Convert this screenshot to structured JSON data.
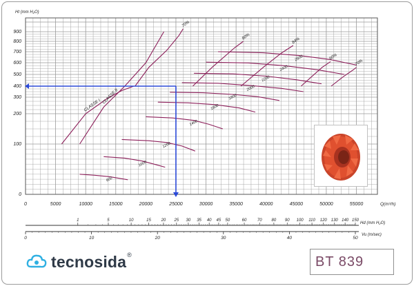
{
  "chart_data": {
    "type": "line",
    "ylabel": "Ht (mm H₂O)",
    "xlabel": "Q(m³/h)",
    "x_ticks": [
      0,
      5000,
      10000,
      15000,
      20000,
      25000,
      30000,
      35000,
      40000,
      45000,
      50000,
      55000
    ],
    "x_tick_labels": [
      "0",
      "5000",
      "10000",
      "15000",
      "20000",
      "25000",
      "30000",
      "35000",
      "40000",
      "45000",
      "50000",
      "55000"
    ],
    "xlim": [
      0,
      58500
    ],
    "y_ticks": [
      100,
      200,
      300,
      400,
      500,
      600,
      700,
      800,
      900
    ],
    "y_tick_labels": [
      "100",
      "200",
      "300",
      "400",
      "500",
      "600",
      "700",
      "800",
      "900"
    ],
    "y_zero_label": "0",
    "efficiency_lines": [
      {
        "label": "70%",
        "points": [
          [
            18200,
            400
          ],
          [
            20500,
            560
          ],
          [
            23500,
            715
          ],
          [
            25500,
            860
          ],
          [
            26200,
            930
          ]
        ]
      },
      {
        "label": "80%",
        "points": [
          [
            27800,
            400
          ],
          [
            31000,
            560
          ],
          [
            34800,
            740
          ],
          [
            36200,
            800
          ]
        ]
      },
      {
        "label": "84%",
        "points": [
          [
            35800,
            400
          ],
          [
            39500,
            560
          ],
          [
            42600,
            690
          ],
          [
            44500,
            760
          ]
        ]
      },
      {
        "label": "80%",
        "points": [
          [
            45800,
            400
          ],
          [
            48200,
            510
          ],
          [
            49300,
            560
          ],
          [
            50700,
            610
          ]
        ]
      },
      {
        "label": "70%",
        "points": [
          [
            50800,
            400
          ],
          [
            52800,
            480
          ],
          [
            54500,
            540
          ],
          [
            55000,
            560
          ]
        ]
      }
    ],
    "speed_curves": [
      {
        "label": "600",
        "points": [
          [
            9000,
            40
          ],
          [
            11500,
            38
          ],
          [
            14000,
            35
          ],
          [
            16500,
            30
          ],
          [
            17000,
            29
          ]
        ]
      },
      {
        "label": "1000",
        "points": [
          [
            13000,
            75
          ],
          [
            16500,
            72
          ],
          [
            19500,
            66
          ],
          [
            22000,
            58
          ],
          [
            23200,
            54
          ]
        ]
      },
      {
        "label": "1200",
        "points": [
          [
            16000,
            115
          ],
          [
            20500,
            111
          ],
          [
            23500,
            105
          ],
          [
            26000,
            96
          ],
          [
            28200,
            86
          ]
        ]
      },
      {
        "label": "1400",
        "points": [
          [
            20000,
            190
          ],
          [
            24500,
            186
          ],
          [
            28000,
            178
          ],
          [
            30500,
            165
          ],
          [
            32800,
            150
          ]
        ]
      },
      {
        "label": "1600",
        "points": [
          [
            22000,
            270
          ],
          [
            27000,
            266
          ],
          [
            31500,
            255
          ],
          [
            35500,
            235
          ],
          [
            38200,
            210
          ]
        ]
      },
      {
        "label": "1800",
        "points": [
          [
            24000,
            345
          ],
          [
            29500,
            340
          ],
          [
            34500,
            325
          ],
          [
            38500,
            305
          ],
          [
            42200,
            280
          ]
        ]
      },
      {
        "label": "2000",
        "points": [
          [
            26000,
            430
          ],
          [
            32000,
            425
          ],
          [
            37500,
            405
          ],
          [
            42500,
            380
          ],
          [
            46200,
            350
          ]
        ]
      },
      {
        "label": "2200",
        "points": [
          [
            28000,
            510
          ],
          [
            34500,
            505
          ],
          [
            40000,
            485
          ],
          [
            45000,
            455
          ],
          [
            49200,
            420
          ]
        ]
      },
      {
        "label": "2400",
        "points": [
          [
            30000,
            605
          ],
          [
            37000,
            598
          ],
          [
            43000,
            575
          ],
          [
            48500,
            540
          ],
          [
            53000,
            500
          ]
        ]
      },
      {
        "label": "2600",
        "points": [
          [
            32000,
            700
          ],
          [
            39500,
            690
          ],
          [
            45500,
            665
          ],
          [
            50500,
            630
          ],
          [
            55000,
            580
          ]
        ]
      }
    ],
    "class_lines": [
      {
        "label": "CLASSE I",
        "points": [
          [
            6000,
            100
          ],
          [
            10000,
            200
          ],
          [
            13500,
            290
          ],
          [
            16000,
            360
          ],
          [
            18000,
            400
          ]
        ]
      },
      {
        "label": "CLASSE II",
        "points": [
          [
            9000,
            100
          ],
          [
            13000,
            240
          ],
          [
            16500,
            400
          ],
          [
            20000,
            600
          ],
          [
            23000,
            900
          ]
        ]
      }
    ],
    "operating_point": {
      "q": 25000,
      "ht": 400
    },
    "velocity_scale": {
      "label": "Vu (m/sec)",
      "ticks": [
        0,
        10,
        20,
        30,
        40,
        50
      ],
      "max": 50
    },
    "hd_scale": {
      "label": "Hd (mm H₂O)",
      "labels": [
        "1",
        "5",
        "10",
        "15",
        "20",
        "25",
        "30",
        "35",
        "40",
        "45",
        "50",
        "60",
        "70",
        "80",
        "90",
        "100",
        "110",
        "120",
        "130",
        "140",
        "150"
      ]
    }
  },
  "brand": {
    "name": "tecnosida",
    "registered_mark": "®",
    "accent_color": "#2fb0e2",
    "text_color": "#2f3a47"
  },
  "model": {
    "label": "BT 839"
  },
  "colors": {
    "curves": "#8c1f5a",
    "grid": "#9a9a9a",
    "operating_point": "#2a49d8",
    "impeller": "#e0502f"
  },
  "icons": {
    "logo": "cloud-swirl-icon",
    "fan": "centrifugal-impeller-icon"
  }
}
